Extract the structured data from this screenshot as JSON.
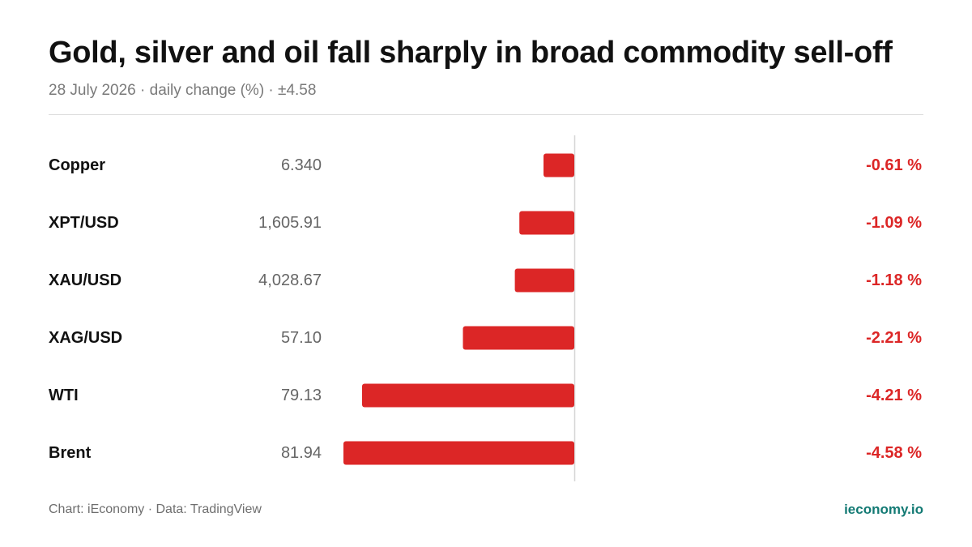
{
  "header": {
    "title": "Gold, silver and oil fall sharply in broad commodity sell-off",
    "subtitle": "28 July 2026 · daily change (%) · ±4.58"
  },
  "footer": {
    "source": "Chart: iEconomy · Data: TradingView",
    "brand": "ieconomy.io"
  },
  "colors": {
    "negative": "#dc2626",
    "brand": "#137a74"
  },
  "chart_data": {
    "type": "bar",
    "orientation": "horizontal",
    "title": "Gold, silver and oil fall sharply in broad commodity sell-off",
    "subtitle": "28 July 2026 · daily change (%) · ±4.58",
    "xlim": [
      -4.58,
      4.58
    ],
    "categories": [
      "Copper",
      "XPT/USD",
      "XAU/USD",
      "XAG/USD",
      "WTI",
      "Brent"
    ],
    "prices": [
      "6.340",
      "1,605.91",
      "4,028.67",
      "57.10",
      "79.13",
      "81.94"
    ],
    "values": [
      -0.61,
      -1.09,
      -1.18,
      -2.21,
      -4.21,
      -4.58
    ],
    "value_labels": [
      "-0.61 %",
      "-1.09 %",
      "-1.18 %",
      "-2.21 %",
      "-4.21 %",
      "-4.58 %"
    ]
  }
}
